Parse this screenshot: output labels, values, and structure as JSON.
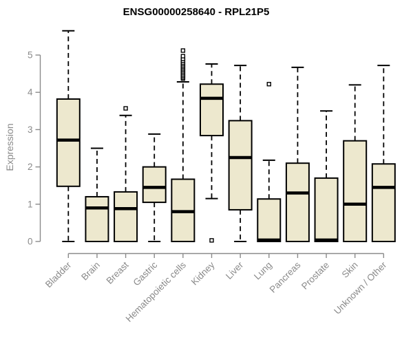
{
  "chart_data": {
    "type": "boxplot",
    "title": "ENSG00000258640 - RPL21P5",
    "ylabel": "Expression",
    "xlabel": "",
    "ylim": [
      0,
      5
    ],
    "yticks": [
      0,
      1,
      2,
      3,
      4,
      5
    ],
    "grid": false,
    "legend": "none",
    "categories": [
      "Bladder",
      "Brain",
      "Breast",
      "Gastric",
      "Hematopoietic cells",
      "Kidney",
      "Liver",
      "Lung",
      "Pancreas",
      "Prostate",
      "Skin",
      "Unknown / Other"
    ],
    "series": [
      {
        "name": "Bladder",
        "low": 0,
        "q1": 1.48,
        "median": 2.72,
        "q3": 3.82,
        "high": 5.65,
        "outliers": []
      },
      {
        "name": "Brain",
        "low": 0,
        "q1": 0,
        "median": 0.9,
        "q3": 1.2,
        "high": 2.5,
        "outliers": []
      },
      {
        "name": "Breast",
        "low": 0,
        "q1": 0,
        "median": 0.88,
        "q3": 1.33,
        "high": 3.38,
        "outliers": [
          3.57
        ]
      },
      {
        "name": "Gastric",
        "low": 0,
        "q1": 1.05,
        "median": 1.45,
        "q3": 2.0,
        "high": 2.88,
        "outliers": []
      },
      {
        "name": "Hematopoietic cells",
        "low": 0,
        "q1": 0,
        "median": 0.8,
        "q3": 1.67,
        "high": 4.28,
        "outliers": [
          4.37,
          4.4,
          4.44,
          4.48,
          4.52,
          4.56,
          4.6,
          4.64,
          4.68,
          4.72,
          4.76,
          4.8,
          4.85,
          4.9,
          4.97,
          5.12
        ]
      },
      {
        "name": "Kidney",
        "low": 1.15,
        "q1": 2.84,
        "median": 3.84,
        "q3": 4.22,
        "high": 4.76,
        "outliers": [
          0.03
        ]
      },
      {
        "name": "Liver",
        "low": 0,
        "q1": 0.85,
        "median": 2.25,
        "q3": 3.24,
        "high": 4.72,
        "outliers": []
      },
      {
        "name": "Lung",
        "low": 0,
        "q1": 0,
        "median": 0.04,
        "q3": 1.14,
        "high": 2.18,
        "outliers": [
          4.22
        ]
      },
      {
        "name": "Pancreas",
        "low": 0,
        "q1": 0,
        "median": 1.3,
        "q3": 2.1,
        "high": 4.67,
        "outliers": []
      },
      {
        "name": "Prostate",
        "low": 0,
        "q1": 0,
        "median": 0.04,
        "q3": 1.7,
        "high": 3.5,
        "outliers": []
      },
      {
        "name": "Skin",
        "low": 0,
        "q1": 0,
        "median": 1.0,
        "q3": 2.7,
        "high": 4.2,
        "outliers": []
      },
      {
        "name": "Unknown / Other",
        "low": 0,
        "q1": 0,
        "median": 1.45,
        "q3": 2.08,
        "high": 4.72,
        "outliers": []
      }
    ]
  },
  "colors": {
    "box_fill": "#EDE8CE",
    "box_stroke": "#000000",
    "median": "#000000",
    "axis": "#8a8a8a",
    "tick_label": "#8a8a8a",
    "title": "#000000",
    "outlier_fill": "#FFFFFF",
    "background": "#FFFFFF"
  }
}
